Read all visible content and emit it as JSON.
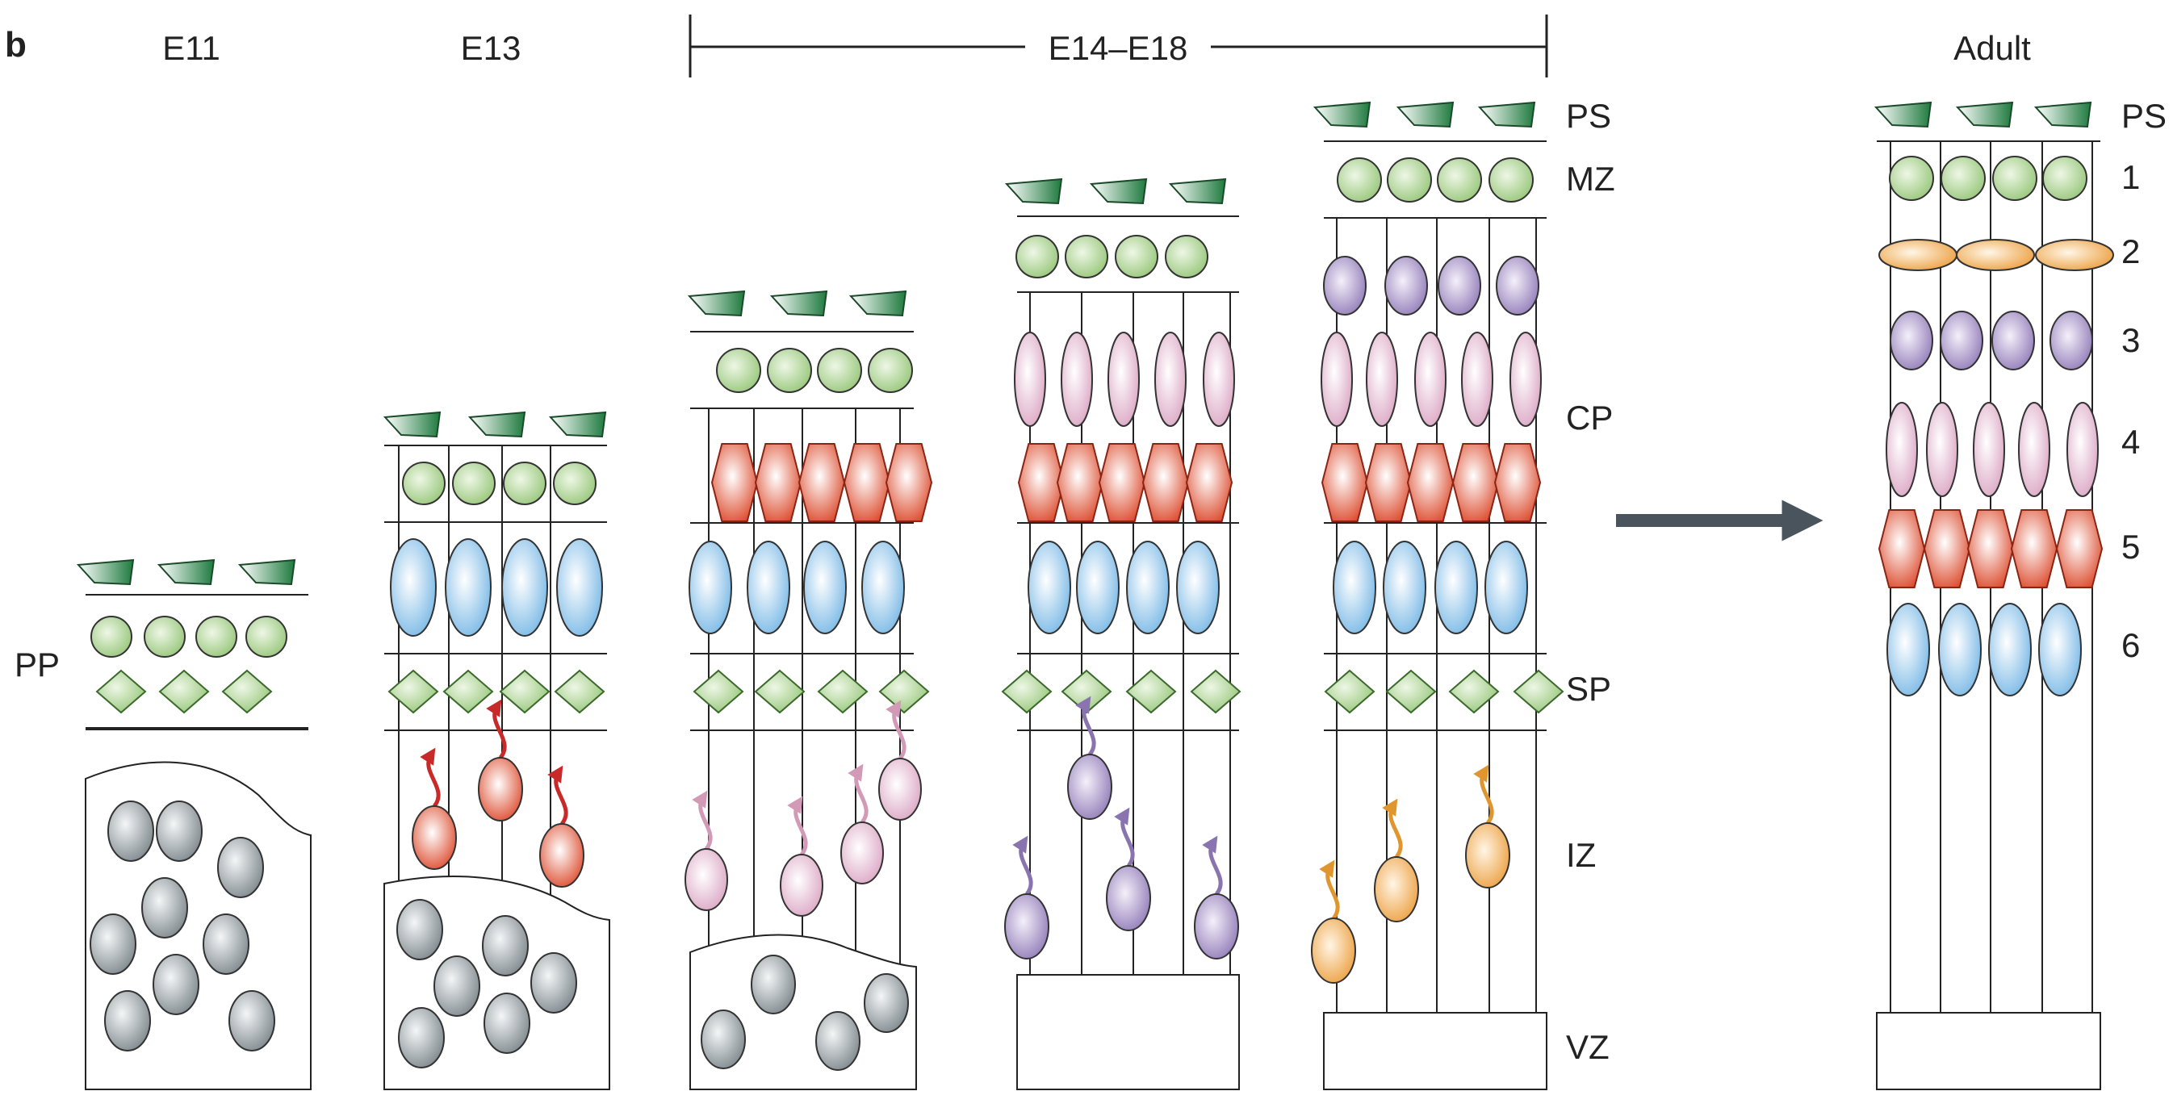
{
  "panel_letter": "b",
  "stages": {
    "e11": "E11",
    "e13": "E13",
    "e14_e18": "E14–E18",
    "adult": "Adult"
  },
  "zones": {
    "pp": "PP",
    "ps": "PS",
    "mz": "MZ",
    "cp": "CP",
    "sp": "SP",
    "iz": "IZ",
    "vz": "VZ"
  },
  "adult_layers": {
    "ps": "PS",
    "l1": "1",
    "l2": "2",
    "l3": "3",
    "l4": "4",
    "l5": "5",
    "l6": "6"
  },
  "colors": {
    "pial_green": "#2e8b4f",
    "cr_green": "#a9d18e",
    "subplate_green": "#9fcf84",
    "layer6_blue": "#8cc3ea",
    "layer5_red": "#e05a3c",
    "layer4_pink": "#e0aac8",
    "layer3_purple": "#9d87bd",
    "layer2_orange": "#f2a94a",
    "progenitor_grey": "#8e979c",
    "migration_red": "#c82a2a",
    "migration_pink": "#d39ab8",
    "migration_purple": "#8a74b0",
    "migration_orange": "#e0962e",
    "transition_arrow": "#4a545c"
  }
}
